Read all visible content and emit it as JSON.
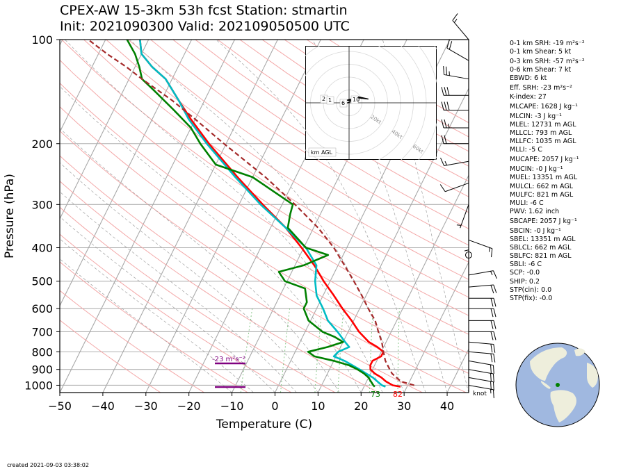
{
  "header": {
    "title_line1": "CPEX-AW 15-3km  53h fcst  Station: stmartin",
    "title_line2": "Init: 2021090300  Valid: 202109050500 UTC"
  },
  "chart_data": {
    "type": "line",
    "subtype": "skew-T log-P",
    "xlabel": "Temperature (C)",
    "ylabel": "Pressure (hPa)",
    "xlim": [
      -50,
      45
    ],
    "ylim": [
      1050,
      100
    ],
    "x_ticks": [
      -50,
      -40,
      -30,
      -20,
      -10,
      0,
      10,
      20,
      30,
      40
    ],
    "x_tick_labels": [
      "−50",
      "−40",
      "−30",
      "−20",
      "−10",
      "0",
      "10",
      "20",
      "30",
      "40"
    ],
    "y_ticks": [
      100,
      200,
      300,
      400,
      500,
      600,
      700,
      800,
      900,
      1000
    ],
    "y_scale": "log",
    "grid": true,
    "series": [
      {
        "role": "temperature",
        "color": "#ff0000",
        "points": [
          [
            1010,
            28.5
          ],
          [
            1000,
            26.5
          ],
          [
            975,
            24.5
          ],
          [
            950,
            23.0
          ],
          [
            925,
            21.0
          ],
          [
            900,
            19.5
          ],
          [
            875,
            19.0
          ],
          [
            850,
            19.0
          ],
          [
            825,
            20.5
          ],
          [
            800,
            20.5
          ],
          [
            775,
            18.5
          ],
          [
            750,
            16.0
          ],
          [
            700,
            12.5
          ],
          [
            650,
            9.5
          ],
          [
            600,
            6.0
          ],
          [
            550,
            2.5
          ],
          [
            500,
            -1.5
          ],
          [
            450,
            -5.5
          ],
          [
            400,
            -10.5
          ],
          [
            350,
            -16.5
          ],
          [
            300,
            -24.5
          ],
          [
            250,
            -33.5
          ],
          [
            200,
            -44.0
          ],
          [
            170,
            -51.0
          ],
          [
            150,
            -56.0
          ],
          [
            130,
            -61.5
          ],
          [
            120,
            -66.0
          ],
          [
            110,
            -70.0
          ],
          [
            100,
            -72.0
          ]
        ]
      },
      {
        "role": "dewpoint",
        "color": "#00bcc4",
        "points": [
          [
            1010,
            25.0
          ],
          [
            1000,
            24.0
          ],
          [
            975,
            22.5
          ],
          [
            950,
            21.0
          ],
          [
            925,
            19.0
          ],
          [
            900,
            17.0
          ],
          [
            850,
            12.5
          ],
          [
            825,
            9.5
          ],
          [
            800,
            10.0
          ],
          [
            775,
            12.0
          ],
          [
            750,
            10.5
          ],
          [
            700,
            7.5
          ],
          [
            650,
            4.0
          ],
          [
            600,
            1.5
          ],
          [
            550,
            -1.5
          ],
          [
            500,
            -3.5
          ],
          [
            450,
            -5.0
          ],
          [
            400,
            -9.5
          ],
          [
            350,
            -16.5
          ],
          [
            300,
            -25.0
          ],
          [
            250,
            -34.0
          ],
          [
            200,
            -44.5
          ],
          [
            170,
            -51.5
          ],
          [
            150,
            -56.0
          ],
          [
            130,
            -61.5
          ],
          [
            120,
            -66.0
          ],
          [
            110,
            -70.0
          ],
          [
            100,
            -72.0
          ]
        ]
      },
      {
        "role": "wet-bulb",
        "color": "#008000",
        "points": [
          [
            1010,
            22.5
          ],
          [
            1000,
            22.0
          ],
          [
            975,
            21.0
          ],
          [
            950,
            20.0
          ],
          [
            925,
            18.5
          ],
          [
            900,
            16.5
          ],
          [
            875,
            14.0
          ],
          [
            850,
            10.0
          ],
          [
            825,
            5.0
          ],
          [
            800,
            3.0
          ],
          [
            775,
            7.0
          ],
          [
            750,
            10.0
          ],
          [
            725,
            7.5
          ],
          [
            700,
            4.0
          ],
          [
            650,
            -0.5
          ],
          [
            600,
            -3.0
          ],
          [
            575,
            -3.0
          ],
          [
            525,
            -5.0
          ],
          [
            500,
            -10.5
          ],
          [
            470,
            -13.0
          ],
          [
            450,
            -8.0
          ],
          [
            420,
            -3.5
          ],
          [
            400,
            -9.5
          ],
          [
            350,
            -16.0
          ],
          [
            320,
            -17.0
          ],
          [
            300,
            -17.5
          ],
          [
            250,
            -30.0
          ],
          [
            230,
            -40.0
          ],
          [
            200,
            -46.0
          ],
          [
            180,
            -50.0
          ],
          [
            160,
            -56.0
          ],
          [
            140,
            -63.0
          ],
          [
            130,
            -67.0
          ],
          [
            120,
            -69.0
          ],
          [
            110,
            -71.5
          ],
          [
            100,
            -75.0
          ]
        ]
      },
      {
        "role": "parcel",
        "color": "#a52a2a",
        "dashed": true,
        "points": [
          [
            1000,
            31.5
          ],
          [
            975,
            28.0
          ],
          [
            950,
            26.5
          ],
          [
            925,
            25.0
          ],
          [
            900,
            24.0
          ],
          [
            850,
            22.0
          ],
          [
            800,
            20.5
          ],
          [
            750,
            19.0
          ],
          [
            700,
            17.0
          ],
          [
            650,
            15.0
          ],
          [
            600,
            12.0
          ],
          [
            550,
            9.0
          ],
          [
            500,
            5.5
          ],
          [
            450,
            1.5
          ],
          [
            400,
            -3.0
          ],
          [
            350,
            -9.0
          ],
          [
            300,
            -17.0
          ],
          [
            250,
            -27.0
          ],
          [
            200,
            -40.5
          ],
          [
            170,
            -50.0
          ],
          [
            150,
            -57.5
          ],
          [
            130,
            -67.0
          ],
          [
            120,
            -72.0
          ],
          [
            110,
            -78.0
          ],
          [
            100,
            -84.0
          ]
        ]
      }
    ],
    "annotations": {
      "surface_dewpoint_label": "73",
      "surface_temperature_label": "82",
      "srh_label": "-23 m²s⁻²",
      "wind_unit_label": "knot"
    },
    "hodograph": {
      "label": "km AGL",
      "ring_labels": [
        "20kt",
        "40kt",
        "60kt",
        "80kt"
      ],
      "height_labels": [
        "2",
        "1",
        "6",
        "10"
      ],
      "points_kt": [
        [
          -4,
          -1
        ],
        [
          -2,
          0
        ],
        [
          -1,
          0
        ],
        [
          1,
          1
        ],
        [
          2,
          2
        ],
        [
          -2,
          2
        ],
        [
          6,
          4
        ],
        [
          15,
          3
        ],
        [
          6,
          5
        ],
        [
          2,
          4
        ]
      ]
    },
    "wind_barbs": [
      {
        "p": 100,
        "dir": 320,
        "spd": 15
      },
      {
        "p": 115,
        "dir": 300,
        "spd": 20
      },
      {
        "p": 130,
        "dir": 280,
        "spd": 25
      },
      {
        "p": 145,
        "dir": 270,
        "spd": 30
      },
      {
        "p": 160,
        "dir": 270,
        "spd": 30
      },
      {
        "p": 180,
        "dir": 270,
        "spd": 25
      },
      {
        "p": 200,
        "dir": 270,
        "spd": 20
      },
      {
        "p": 225,
        "dir": 260,
        "spd": 15
      },
      {
        "p": 260,
        "dir": 250,
        "spd": 10
      },
      {
        "p": 300,
        "dir": 200,
        "spd": 5
      },
      {
        "p": 350,
        "dir": 180,
        "spd": 5
      },
      {
        "p": 380,
        "dir": 110,
        "spd": 15
      },
      {
        "p": 420,
        "dir": 90,
        "spd": 0
      },
      {
        "p": 480,
        "dir": 80,
        "spd": 15
      },
      {
        "p": 520,
        "dir": 85,
        "spd": 20
      },
      {
        "p": 560,
        "dir": 90,
        "spd": 20
      },
      {
        "p": 600,
        "dir": 90,
        "spd": 20
      },
      {
        "p": 650,
        "dir": 90,
        "spd": 20
      },
      {
        "p": 700,
        "dir": 90,
        "spd": 20
      },
      {
        "p": 750,
        "dir": 95,
        "spd": 20
      },
      {
        "p": 800,
        "dir": 95,
        "spd": 20
      },
      {
        "p": 850,
        "dir": 100,
        "spd": 20
      },
      {
        "p": 900,
        "dir": 100,
        "spd": 20
      },
      {
        "p": 950,
        "dir": 100,
        "spd": 20
      },
      {
        "p": 1000,
        "dir": 100,
        "spd": 15
      }
    ]
  },
  "params": [
    "0-1 km SRH: -19 m²s⁻²",
    "0-1 km Shear: 5 kt",
    "0-3 km SRH: -57 m²s⁻²",
    "0-6 km Shear: 7 kt",
    "EBWD: 6 kt",
    "Eff. SRH: -23 m²s⁻²",
    "K-index: 27",
    "MLCAPE: 1628 J kg⁻¹",
    "MLCIN: -3 J kg⁻¹",
    "MLEL: 12731 m AGL",
    "MLLCL: 793 m AGL",
    "MLLFC: 1035 m AGL",
    "MLLI: -5 C",
    "MUCAPE: 2057 J kg⁻¹",
    "MUCIN: -0 J kg⁻¹",
    "MUEL: 13351 m AGL",
    "MULCL: 662 m AGL",
    "MULFC: 821 m AGL",
    "MULI: -6 C",
    "PWV: 1.62 inch",
    "SBCAPE: 2057 J kg⁻¹",
    "SBCIN: -0 J kg⁻¹",
    "SBEL: 13351 m AGL",
    "SBLCL: 662 m AGL",
    "SBLFC: 821 m AGL",
    "SBLI: -6 C",
    "SCP: -0.0",
    "SHIP: 0.2",
    "STP(cin): 0.0",
    "STP(fix): -0.0"
  ],
  "footer": {
    "created": "created 2021-09-03 03:38:02"
  },
  "colors": {
    "temperature": "#ff0000",
    "dewpoint": "#00bcc4",
    "wetbulb": "#008000",
    "parcel": "#a52a2a",
    "srh_bar": "#800080",
    "ocean": "#a0b8e0",
    "land": "#eeeedc"
  }
}
